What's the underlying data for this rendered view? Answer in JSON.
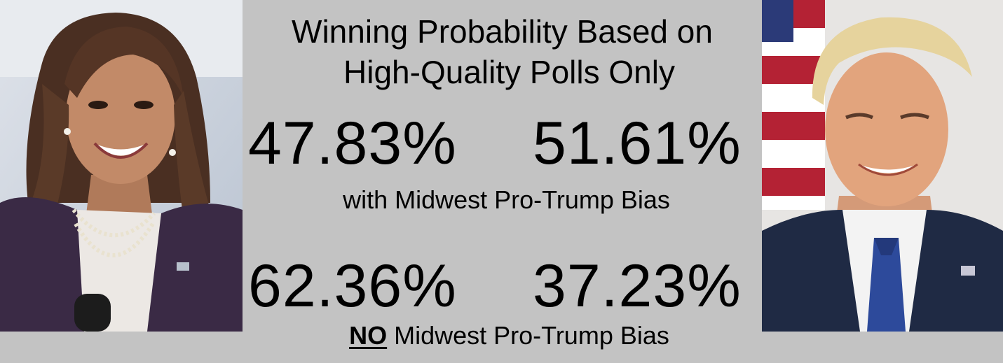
{
  "title": {
    "line1": "Winning Probability Based on",
    "line2": "High-Quality Polls Only"
  },
  "scenario_with_bias": {
    "harris_pct": "47.83%",
    "trump_pct": "51.61%",
    "label": "with Midwest Pro-Trump Bias"
  },
  "scenario_no_bias": {
    "harris_pct": "62.36%",
    "trump_pct": "37.23%",
    "label_emphasis": "NO",
    "label_rest": " Midwest Pro-Trump Bias"
  },
  "colors": {
    "background": "#c3c3c3",
    "text": "#000000"
  },
  "icons": {
    "left_photo": "candidate-portrait-harris",
    "right_photo": "candidate-portrait-trump"
  }
}
